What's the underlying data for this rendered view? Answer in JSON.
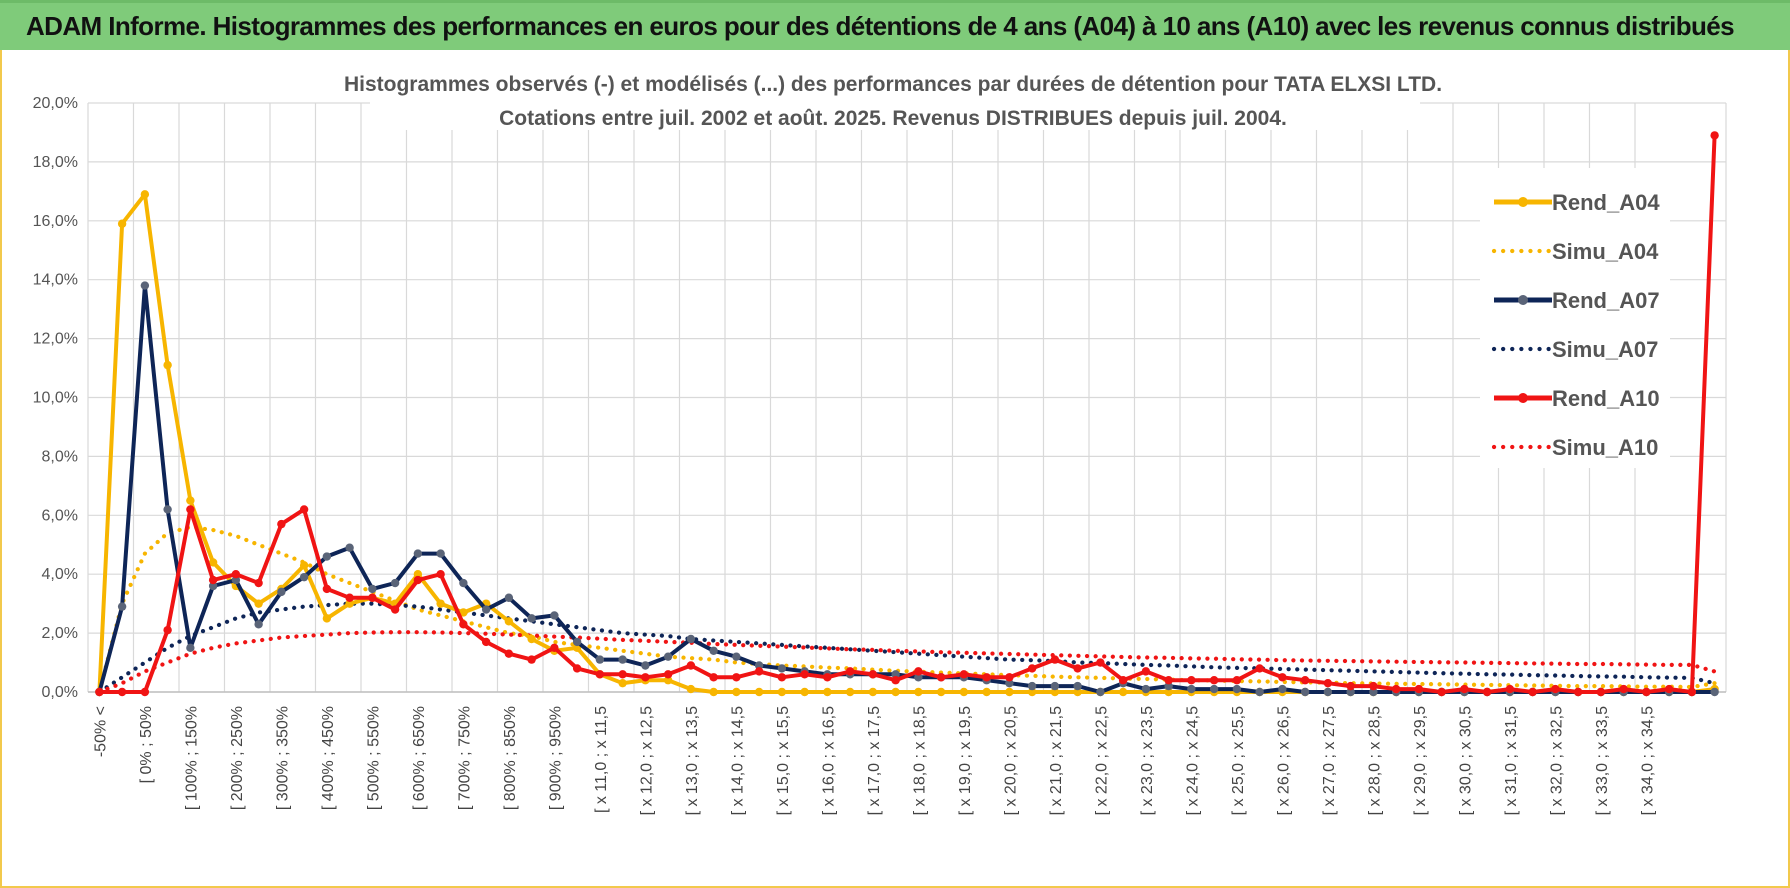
{
  "banner": {
    "title": "ADAM Informe. Histogrammes des performances en euros pour des détentions de 4 ans (A04) à 10 ans (A10) avec les revenus connus distribués"
  },
  "colors": {
    "banner_bg": "#7fcb7a",
    "A04": "#f7b500",
    "A07": "#0e2557",
    "A10": "#f01414",
    "grid": "#d9d9d9"
  },
  "chart_data": {
    "type": "line",
    "title_lines": [
      "Histogrammes observés (-) et modélisés (...) des performances par durées de détention pour TATA  ELXSI LTD.",
      "Cotations entre juil. 2002 et août. 2025. Revenus DISTRIBUES depuis juil. 2004."
    ],
    "ylim": [
      0,
      20
    ],
    "y_ticks": [
      "0,0%",
      "2,0%",
      "4,0%",
      "6,0%",
      "8,0%",
      "10,0%",
      "12,0%",
      "14,0%",
      "16,0%",
      "18,0%",
      "20,0%"
    ],
    "y_unit": "%",
    "x_tick_labels": [
      "-50% <",
      "[ 0% ; 50%",
      "[ 100% ; 150%",
      "[ 200% ; 250%",
      "[ 300% ; 350%",
      "[ 400% ; 450%",
      "[ 500% ; 550%",
      "[ 600% ; 650%",
      "[ 700% ; 750%",
      "[ 800% ; 850%",
      "[ 900% ; 950%",
      "[ x 11,0 ; x 11,5",
      "[ x 12,0 ; x 12,5",
      "[ x 13,0 ; x 13,5",
      "[ x 14,0 ; x 14,5",
      "[ x 15,0 ; x 15,5",
      "[ x 16,0 ; x 16,5",
      "[ x 17,0 ; x 17,5",
      "[ x 18,0 ; x 18,5",
      "[ x 19,0 ; x 19,5",
      "[ x 20,0 ; x 20,5",
      "[ x 21,0 ; x 21,5",
      "[ x 22,0 ; x 22,5",
      "[ x 23,0 ; x 23,5",
      "[ x 24,0 ; x 24,5",
      "[ x 25,0 ; x 25,5",
      "[ x 26,0 ; x 26,5",
      "[ x 27,0 ; x 27,5",
      "[ x 28,0 ; x 28,5",
      "[ x 29,0 ; x 29,5",
      "[ x 30,0 ; x 30,5",
      "[ x 31,0 ; x 31,5",
      "[ x 32,0 ; x 32,5",
      "[ x 33,0 ; x 33,5",
      "[ x 34,0 ; x 34,5"
    ],
    "x_tick_step": 2,
    "n_bins": 72,
    "grid": true,
    "legend_position": "right",
    "series": [
      {
        "name": "Rend_A04",
        "style": "solid",
        "color": "#f7b500",
        "values": [
          0,
          15.9,
          16.9,
          11.1,
          6.5,
          4.4,
          3.6,
          3.0,
          3.5,
          4.3,
          2.5,
          3.0,
          3.2,
          3.0,
          4.0,
          3.0,
          2.7,
          3.0,
          2.4,
          1.8,
          1.4,
          1.5,
          0.6,
          0.3,
          0.4,
          0.4,
          0.1,
          0,
          0,
          0,
          0,
          0,
          0,
          0,
          0,
          0,
          0,
          0,
          0,
          0,
          0,
          0,
          0,
          0,
          0,
          0,
          0,
          0,
          0,
          0,
          0,
          0,
          0,
          0,
          0,
          0,
          0,
          0,
          0,
          0,
          0,
          0,
          0,
          0,
          0,
          0,
          0,
          0,
          0,
          0,
          0,
          0.1
        ]
      },
      {
        "name": "Simu_A04",
        "style": "dotted",
        "color": "#f7b500",
        "values": [
          0,
          3.0,
          4.7,
          5.4,
          5.6,
          5.5,
          5.3,
          5.0,
          4.7,
          4.4,
          4.0,
          3.7,
          3.4,
          3.1,
          2.8,
          2.6,
          2.4,
          2.2,
          2.0,
          1.9,
          1.7,
          1.6,
          1.5,
          1.4,
          1.3,
          1.2,
          1.15,
          1.1,
          1.0,
          0.95,
          0.9,
          0.87,
          0.83,
          0.8,
          0.76,
          0.72,
          0.69,
          0.66,
          0.63,
          0.6,
          0.57,
          0.55,
          0.52,
          0.5,
          0.48,
          0.46,
          0.44,
          0.42,
          0.4,
          0.39,
          0.37,
          0.36,
          0.34,
          0.33,
          0.32,
          0.3,
          0.29,
          0.28,
          0.27,
          0.26,
          0.25,
          0.24,
          0.23,
          0.22,
          0.21,
          0.2,
          0.2,
          0.19,
          0.18,
          0.18,
          0.17,
          0.3
        ]
      },
      {
        "name": "Rend_A07",
        "style": "solid",
        "color": "#0e2557",
        "values": [
          0,
          2.9,
          13.8,
          6.2,
          1.5,
          3.6,
          3.8,
          2.3,
          3.4,
          3.9,
          4.6,
          4.9,
          3.5,
          3.7,
          4.7,
          4.7,
          3.7,
          2.8,
          3.2,
          2.5,
          2.6,
          1.7,
          1.1,
          1.1,
          0.9,
          1.2,
          1.8,
          1.4,
          1.2,
          0.9,
          0.8,
          0.7,
          0.6,
          0.6,
          0.6,
          0.6,
          0.5,
          0.5,
          0.5,
          0.4,
          0.3,
          0.2,
          0.2,
          0.2,
          0,
          0.3,
          0.1,
          0.2,
          0.1,
          0.1,
          0.1,
          0,
          0.1,
          0,
          0,
          0,
          0,
          0,
          0,
          0,
          0,
          0,
          0,
          0,
          0,
          0,
          0,
          0,
          0,
          0,
          0,
          0
        ]
      },
      {
        "name": "Simu_A07",
        "style": "dotted",
        "color": "#0e2557",
        "values": [
          0,
          0.5,
          1.0,
          1.5,
          1.9,
          2.2,
          2.5,
          2.7,
          2.8,
          2.9,
          2.95,
          3.0,
          3.0,
          2.95,
          2.9,
          2.8,
          2.7,
          2.6,
          2.5,
          2.4,
          2.3,
          2.2,
          2.1,
          2.0,
          1.95,
          1.9,
          1.8,
          1.75,
          1.7,
          1.65,
          1.6,
          1.55,
          1.5,
          1.45,
          1.4,
          1.35,
          1.3,
          1.25,
          1.2,
          1.15,
          1.1,
          1.08,
          1.05,
          1.0,
          0.98,
          0.95,
          0.92,
          0.9,
          0.87,
          0.84,
          0.82,
          0.8,
          0.78,
          0.76,
          0.74,
          0.72,
          0.7,
          0.68,
          0.66,
          0.64,
          0.62,
          0.6,
          0.59,
          0.57,
          0.56,
          0.54,
          0.53,
          0.52,
          0.5,
          0.49,
          0.48,
          0.3
        ]
      },
      {
        "name": "Rend_A10",
        "style": "solid",
        "color": "#f01414",
        "values": [
          0,
          0,
          0,
          2.1,
          6.2,
          3.8,
          4.0,
          3.7,
          5.7,
          6.2,
          3.5,
          3.2,
          3.2,
          2.8,
          3.8,
          4.0,
          2.3,
          1.7,
          1.3,
          1.1,
          1.5,
          0.8,
          0.6,
          0.6,
          0.5,
          0.6,
          0.9,
          0.5,
          0.5,
          0.7,
          0.5,
          0.6,
          0.5,
          0.7,
          0.6,
          0.4,
          0.7,
          0.5,
          0.6,
          0.5,
          0.5,
          0.8,
          1.1,
          0.8,
          1.0,
          0.4,
          0.7,
          0.4,
          0.4,
          0.4,
          0.4,
          0.8,
          0.5,
          0.4,
          0.3,
          0.2,
          0.2,
          0.1,
          0.1,
          0,
          0.1,
          0,
          0.1,
          0,
          0.1,
          0,
          0,
          0.1,
          0,
          0.1,
          0,
          18.9
        ]
      },
      {
        "name": "Simu_A10",
        "style": "dotted",
        "color": "#f01414",
        "values": [
          0,
          0.3,
          0.7,
          1.0,
          1.3,
          1.5,
          1.65,
          1.75,
          1.85,
          1.9,
          1.95,
          2.0,
          2.02,
          2.03,
          2.03,
          2.02,
          2.0,
          1.98,
          1.95,
          1.92,
          1.88,
          1.85,
          1.81,
          1.77,
          1.74,
          1.7,
          1.67,
          1.63,
          1.6,
          1.57,
          1.54,
          1.51,
          1.48,
          1.45,
          1.43,
          1.4,
          1.38,
          1.35,
          1.33,
          1.31,
          1.29,
          1.27,
          1.25,
          1.23,
          1.21,
          1.19,
          1.17,
          1.16,
          1.14,
          1.13,
          1.11,
          1.1,
          1.08,
          1.07,
          1.06,
          1.05,
          1.04,
          1.03,
          1.02,
          1.01,
          1.0,
          0.99,
          0.98,
          0.97,
          0.96,
          0.95,
          0.95,
          0.94,
          0.93,
          0.92,
          0.92,
          0.7
        ]
      }
    ]
  }
}
